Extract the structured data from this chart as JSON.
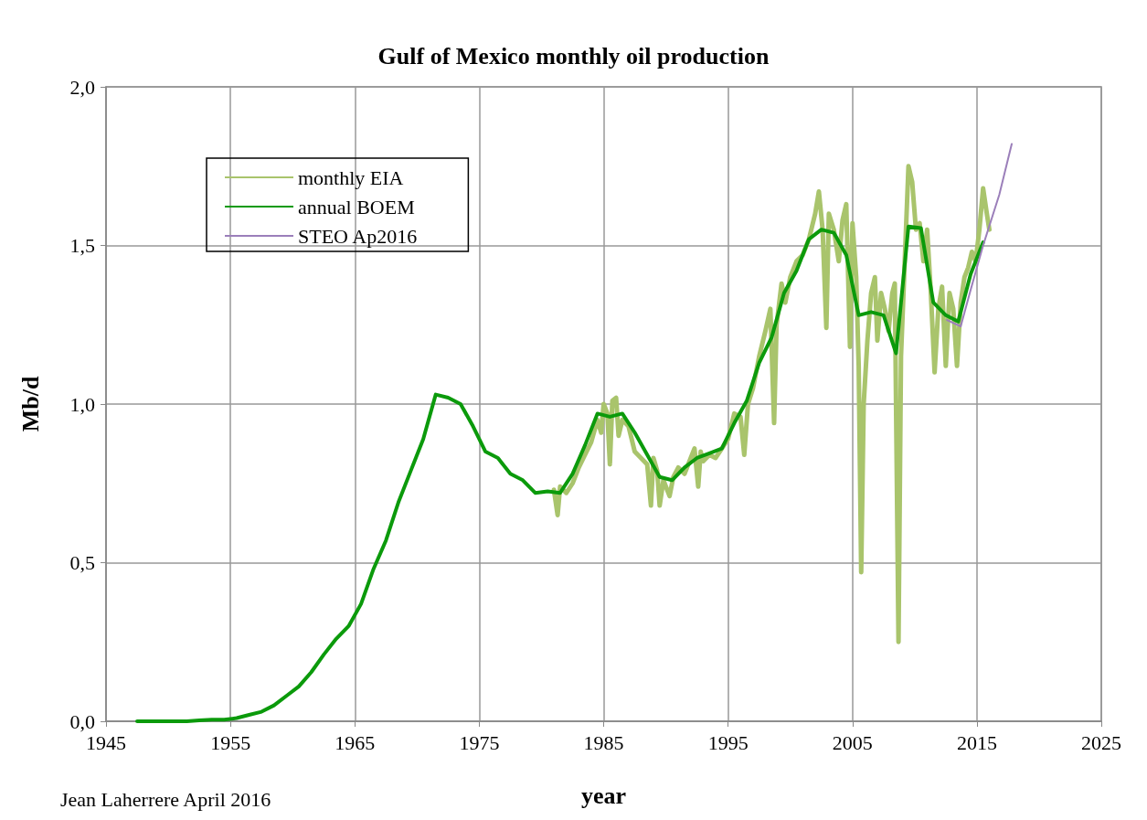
{
  "chart_data": {
    "type": "line",
    "title": "Gulf of Mexico monthly oil production",
    "xlabel": "year",
    "ylabel": "Mb/d",
    "annotations": [
      "Jean Laherrere April 2016"
    ],
    "xlim": [
      1945,
      2025
    ],
    "xticks": [
      1945,
      1955,
      1965,
      1975,
      1985,
      1995,
      2005,
      2015,
      2025
    ],
    "ylim": [
      0,
      2
    ],
    "yticks": [
      {
        "value": 0,
        "label": "0,0"
      },
      {
        "value": 0.5,
        "label": "0,5"
      },
      {
        "value": 1,
        "label": "1,0"
      },
      {
        "value": 1.5,
        "label": "1,5"
      },
      {
        "value": 2,
        "label": "2,0"
      }
    ],
    "grid": true,
    "legend": "top left",
    "marker": "none",
    "line_style": "solid",
    "series": [
      {
        "name": "monthly EIA",
        "color": "#a9c46c",
        "x": [
          1981.0,
          1981.3,
          1981.5,
          1982.0,
          1982.5,
          1983.0,
          1983.5,
          1984.0,
          1984.5,
          1984.8,
          1985.0,
          1985.3,
          1985.5,
          1985.7,
          1986.0,
          1986.2,
          1986.5,
          1987.0,
          1987.5,
          1988.0,
          1988.5,
          1988.8,
          1989.0,
          1989.3,
          1989.5,
          1989.8,
          1990.0,
          1990.3,
          1990.6,
          1991.0,
          1991.5,
          1992.0,
          1992.3,
          1992.6,
          1992.8,
          1993.0,
          1993.5,
          1994.0,
          1994.5,
          1995.0,
          1995.5,
          1996.0,
          1996.3,
          1996.6,
          1997.0,
          1997.5,
          1998.0,
          1998.4,
          1998.7,
          1998.9,
          1999.3,
          1999.6,
          2000.0,
          2000.5,
          2001.0,
          2001.5,
          2002.0,
          2002.3,
          2002.6,
          2002.9,
          2003.1,
          2003.5,
          2003.9,
          2004.2,
          2004.5,
          2004.8,
          2005.0,
          2005.3,
          2005.5,
          2005.7,
          2005.9,
          2006.2,
          2006.5,
          2006.8,
          2007.0,
          2007.3,
          2007.6,
          2007.9,
          2008.2,
          2008.4,
          2008.7,
          2008.9,
          2009.2,
          2009.5,
          2009.8,
          2010.1,
          2010.4,
          2010.7,
          2011.0,
          2011.3,
          2011.6,
          2011.9,
          2012.2,
          2012.5,
          2012.8,
          2013.1,
          2013.4,
          2013.7,
          2014.0,
          2014.3,
          2014.6,
          2014.9,
          2015.2,
          2015.5,
          2015.8,
          2016.0
        ],
        "values": [
          0.73,
          0.65,
          0.74,
          0.72,
          0.75,
          0.8,
          0.84,
          0.88,
          0.95,
          0.91,
          1.0,
          0.97,
          0.81,
          1.01,
          1.02,
          0.9,
          0.95,
          0.93,
          0.85,
          0.83,
          0.81,
          0.68,
          0.83,
          0.79,
          0.68,
          0.76,
          0.74,
          0.71,
          0.77,
          0.8,
          0.78,
          0.83,
          0.86,
          0.74,
          0.85,
          0.82,
          0.84,
          0.83,
          0.86,
          0.89,
          0.97,
          0.96,
          0.84,
          1.0,
          1.05,
          1.15,
          1.23,
          1.3,
          0.94,
          1.25,
          1.38,
          1.32,
          1.4,
          1.45,
          1.47,
          1.52,
          1.6,
          1.67,
          1.55,
          1.24,
          1.6,
          1.55,
          1.45,
          1.58,
          1.63,
          1.18,
          1.57,
          1.4,
          1.12,
          0.47,
          1.0,
          1.2,
          1.35,
          1.4,
          1.2,
          1.35,
          1.3,
          1.23,
          1.35,
          1.38,
          0.25,
          1.15,
          1.45,
          1.75,
          1.7,
          1.55,
          1.57,
          1.45,
          1.55,
          1.35,
          1.1,
          1.3,
          1.37,
          1.12,
          1.35,
          1.3,
          1.12,
          1.32,
          1.4,
          1.43,
          1.48,
          1.45,
          1.55,
          1.68,
          1.6,
          1.55
        ]
      },
      {
        "name": "annual BOEM",
        "color": "#0b9a0b",
        "x": [
          1947.5,
          1948.5,
          1949.5,
          1950.5,
          1951.5,
          1952.5,
          1953.5,
          1954.5,
          1955.5,
          1956.5,
          1957.5,
          1958.5,
          1959.5,
          1960.5,
          1961.5,
          1962.5,
          1963.5,
          1964.5,
          1965.5,
          1966.5,
          1967.5,
          1968.5,
          1969.5,
          1970.5,
          1971.5,
          1972.5,
          1973.5,
          1974.5,
          1975.5,
          1976.5,
          1977.5,
          1978.5,
          1979.5,
          1980.5,
          1981.5,
          1982.5,
          1983.5,
          1984.5,
          1985.5,
          1986.5,
          1987.5,
          1988.5,
          1989.5,
          1990.5,
          1991.5,
          1992.5,
          1993.5,
          1994.5,
          1995.5,
          1996.5,
          1997.5,
          1998.5,
          1999.5,
          2000.5,
          2001.5,
          2002.5,
          2003.5,
          2004.5,
          2005.5,
          2006.5,
          2007.5,
          2008.5,
          2009.5,
          2010.5,
          2011.5,
          2012.5,
          2013.5,
          2014.5,
          2015.5
        ],
        "values": [
          0,
          0,
          0,
          0,
          0,
          0.003,
          0.005,
          0.005,
          0.01,
          0.02,
          0.03,
          0.05,
          0.08,
          0.11,
          0.155,
          0.21,
          0.26,
          0.3,
          0.37,
          0.48,
          0.57,
          0.69,
          0.79,
          0.89,
          1.03,
          1.02,
          1.0,
          0.93,
          0.85,
          0.83,
          0.78,
          0.76,
          0.72,
          0.725,
          0.72,
          0.78,
          0.87,
          0.97,
          0.96,
          0.97,
          0.91,
          0.84,
          0.77,
          0.76,
          0.8,
          0.83,
          0.845,
          0.86,
          0.94,
          1.01,
          1.13,
          1.21,
          1.35,
          1.42,
          1.52,
          1.55,
          1.54,
          1.47,
          1.28,
          1.29,
          1.28,
          1.16,
          1.56,
          1.555,
          1.32,
          1.28,
          1.26,
          1.41,
          1.51
        ]
      },
      {
        "name": "STEO Ap2016",
        "color": "#9b7fba",
        "x": [
          2012.6,
          2013.7,
          2014.5,
          2015.5,
          2016.8,
          2017.8
        ],
        "values": [
          1.265,
          1.245,
          1.36,
          1.5,
          1.66,
          1.82
        ]
      }
    ]
  }
}
